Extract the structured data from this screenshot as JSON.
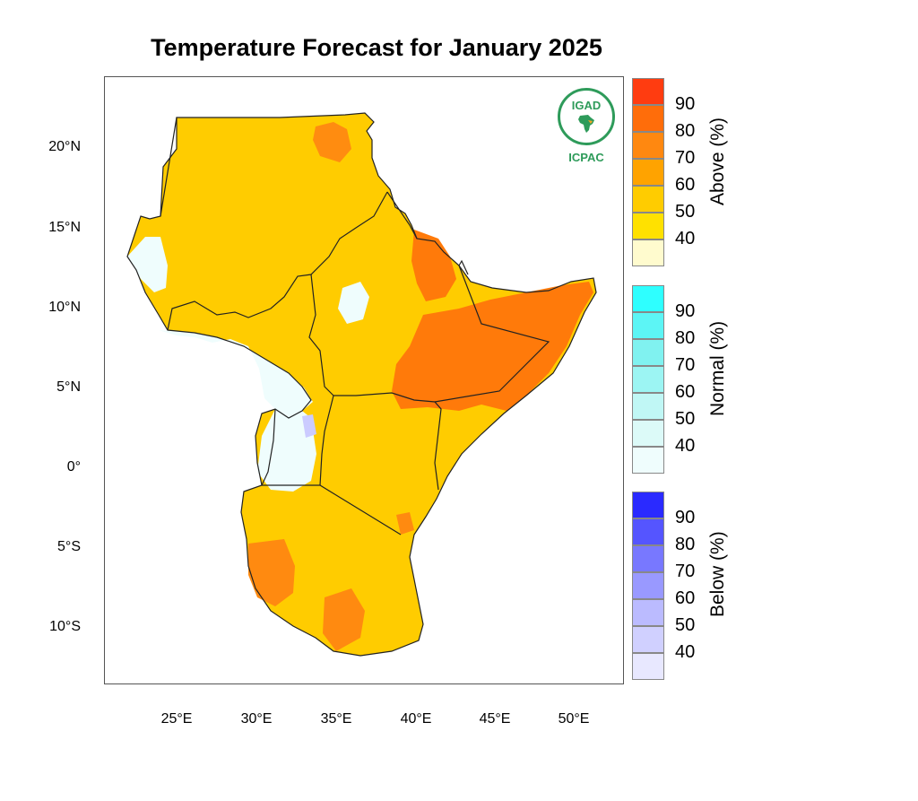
{
  "title": "Temperature Forecast for January 2025",
  "logo": {
    "name": "IGAD",
    "label": "ICPAC",
    "color": "#2e9b5a"
  },
  "axes": {
    "lat_labels": [
      "20°N",
      "15°N",
      "10°N",
      "5°N",
      "0°",
      "5°S",
      "10°S"
    ],
    "lat_values": [
      20,
      15,
      10,
      5,
      0,
      -5,
      -10
    ],
    "lon_labels": [
      "25°E",
      "30°E",
      "35°E",
      "40°E",
      "45°E",
      "50°E"
    ],
    "lon_values": [
      25,
      30,
      35,
      40,
      45,
      50
    ],
    "lon_range": [
      20.5,
      53
    ],
    "lat_range": [
      -13.5,
      24.5
    ]
  },
  "legends": [
    {
      "title": "Above (%)",
      "levels": [
        "90",
        "80",
        "70",
        "60",
        "50",
        "40"
      ],
      "colors": [
        "#ff3c10",
        "#ff6d0a",
        "#ff8810",
        "#ffa300",
        "#ffcc00",
        "#ffe100",
        "#fffbce"
      ]
    },
    {
      "title": "Normal (%)",
      "levels": [
        "90",
        "80",
        "70",
        "60",
        "50",
        "40"
      ],
      "colors": [
        "#2effff",
        "#5cf5f5",
        "#80f2f0",
        "#9cf5f3",
        "#c0f7f5",
        "#dcfaf8",
        "#effdfd"
      ]
    },
    {
      "title": "Below (%)",
      "levels": [
        "90",
        "80",
        "70",
        "60",
        "50",
        "40"
      ],
      "colors": [
        "#2a2aff",
        "#5555ff",
        "#7878ff",
        "#9999ff",
        "#bbbbff",
        "#d0d0ff",
        "#e8e8ff"
      ]
    }
  ]
}
